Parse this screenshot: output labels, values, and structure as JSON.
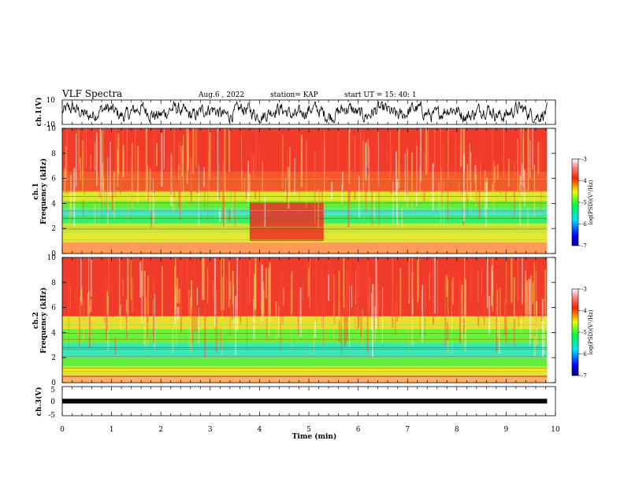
{
  "header": {
    "title": "VLF  Spectra",
    "date": "Aug.6  , 2022",
    "station": "station= KAP",
    "start_ut": "start  UT  =   15: 40: 1"
  },
  "chart_data": [
    {
      "type": "line",
      "panel": "ch1-waveform",
      "ylabel": "ch.1(V)",
      "ylim": [
        -10,
        10
      ],
      "ytick_labels": [
        "10",
        "-10"
      ],
      "xlim": [
        0,
        10
      ],
      "data_span_min": [
        0,
        9.83
      ],
      "description_of_trace": "noisy signal oscillating mostly between about -6 and 6 V"
    },
    {
      "type": "heatmap",
      "panel": "ch1-spectrogram",
      "ylabel_line1": "ch.1",
      "ylabel_line2": "Frequency  (kHz)",
      "ylim": [
        0,
        10
      ],
      "ytick_labels": [
        "0",
        "2",
        "4",
        "6",
        "8",
        "10"
      ],
      "xlim": [
        0,
        10
      ],
      "data_span_min": [
        0,
        9.83
      ],
      "colorbar": {
        "label": "log(PSD)(V²/Hz)",
        "range": [
          -7,
          -3
        ],
        "tick_labels": [
          "-3",
          "-4",
          "-5",
          "-6",
          "-7"
        ]
      },
      "bands": [
        {
          "freq_khz": [
            0.0,
            0.9
          ],
          "color": "#ff9a5a"
        },
        {
          "freq_khz": [
            0.9,
            1.6
          ],
          "color": "#e9e62c"
        },
        {
          "freq_khz": [
            1.6,
            2.4
          ],
          "color": "#c8e830"
        },
        {
          "freq_khz": [
            2.4,
            3.1
          ],
          "color": "#36f06a"
        },
        {
          "freq_khz": [
            3.1,
            3.6
          ],
          "color": "#3ee8c8"
        },
        {
          "freq_khz": [
            3.6,
            4.2
          ],
          "color": "#5cf036"
        },
        {
          "freq_khz": [
            4.2,
            5.0
          ],
          "color": "#d8ea2c"
        },
        {
          "freq_khz": [
            5.0,
            6.5
          ],
          "color": "#f25a28"
        },
        {
          "freq_khz": [
            6.5,
            10.0
          ],
          "color": "#f23a2a"
        }
      ],
      "strong_patch": {
        "time_min": [
          3.8,
          5.3
        ],
        "freq_khz": [
          1.0,
          4.1
        ],
        "color": "#ec2c24"
      }
    },
    {
      "type": "heatmap",
      "panel": "ch2-spectrogram",
      "ylabel_line1": "ch.2",
      "ylabel_line2": "Frequency  (kHz)",
      "ylim": [
        0,
        10
      ],
      "ytick_labels": [
        "0",
        "2",
        "4",
        "6",
        "8",
        "10"
      ],
      "xlim": [
        0,
        10
      ],
      "data_span_min": [
        0,
        9.83
      ],
      "colorbar": {
        "label": "log(PSD)(V²/Hz)",
        "range": [
          -7,
          -3
        ],
        "tick_labels": [
          "-3",
          "-4",
          "-5",
          "-6",
          "-7"
        ]
      },
      "bands": [
        {
          "freq_khz": [
            0.0,
            0.6
          ],
          "color": "#ffb070"
        },
        {
          "freq_khz": [
            0.6,
            1.3
          ],
          "color": "#e8e62c"
        },
        {
          "freq_khz": [
            1.3,
            2.0
          ],
          "color": "#62ee3a"
        },
        {
          "freq_khz": [
            2.0,
            3.2
          ],
          "color": "#38e8b8"
        },
        {
          "freq_khz": [
            3.2,
            4.3
          ],
          "color": "#6cf03a"
        },
        {
          "freq_khz": [
            4.3,
            5.3
          ],
          "color": "#e6e02c"
        },
        {
          "freq_khz": [
            5.3,
            10.0
          ],
          "color": "#f03a2a"
        }
      ]
    },
    {
      "type": "line",
      "panel": "ch3-waveform",
      "ylabel": "ch.3(V)",
      "ylim": [
        -5,
        5
      ],
      "ytick_labels": [
        "5",
        "0",
        "-5"
      ],
      "xlim": [
        0,
        10
      ],
      "xlabel": "Time  (min)",
      "xtick_labels": [
        "0",
        "1",
        "2",
        "3",
        "4",
        "5",
        "6",
        "7",
        "8",
        "9",
        "10"
      ],
      "data_span_min": [
        0,
        9.83
      ],
      "constant_level_v": 0
    }
  ]
}
